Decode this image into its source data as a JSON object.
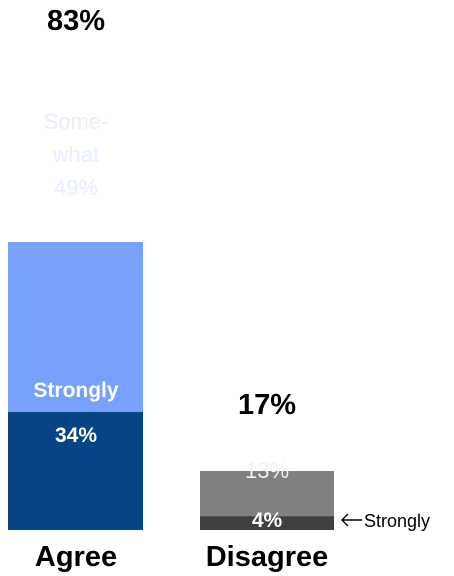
{
  "chart_data": {
    "type": "bar",
    "stacked": true,
    "ylim": [
      0,
      83
    ],
    "categories": [
      "Agree",
      "Disagree"
    ],
    "totals": [
      "83%",
      "17%"
    ],
    "colors": {
      "agree_somewhat": "#77a1fb",
      "agree_strongly": "#064485",
      "disagree_somewhat": "#808080",
      "disagree_strongly": "#404040"
    },
    "series": [
      {
        "key": "agree_somewhat",
        "category": "Agree",
        "value": 49,
        "label_lines": [
          "Some-",
          "what",
          "49%"
        ]
      },
      {
        "key": "agree_strongly",
        "category": "Agree",
        "value": 34,
        "label_lines": [
          "Strongly",
          "34%"
        ]
      },
      {
        "key": "disagree_somewhat",
        "category": "Disagree",
        "value": 13,
        "label_lines": [
          "13%"
        ]
      },
      {
        "key": "disagree_strongly",
        "category": "Disagree",
        "value": 4,
        "label_lines": [
          "4%"
        ],
        "annotation": "Strongly"
      }
    ]
  }
}
